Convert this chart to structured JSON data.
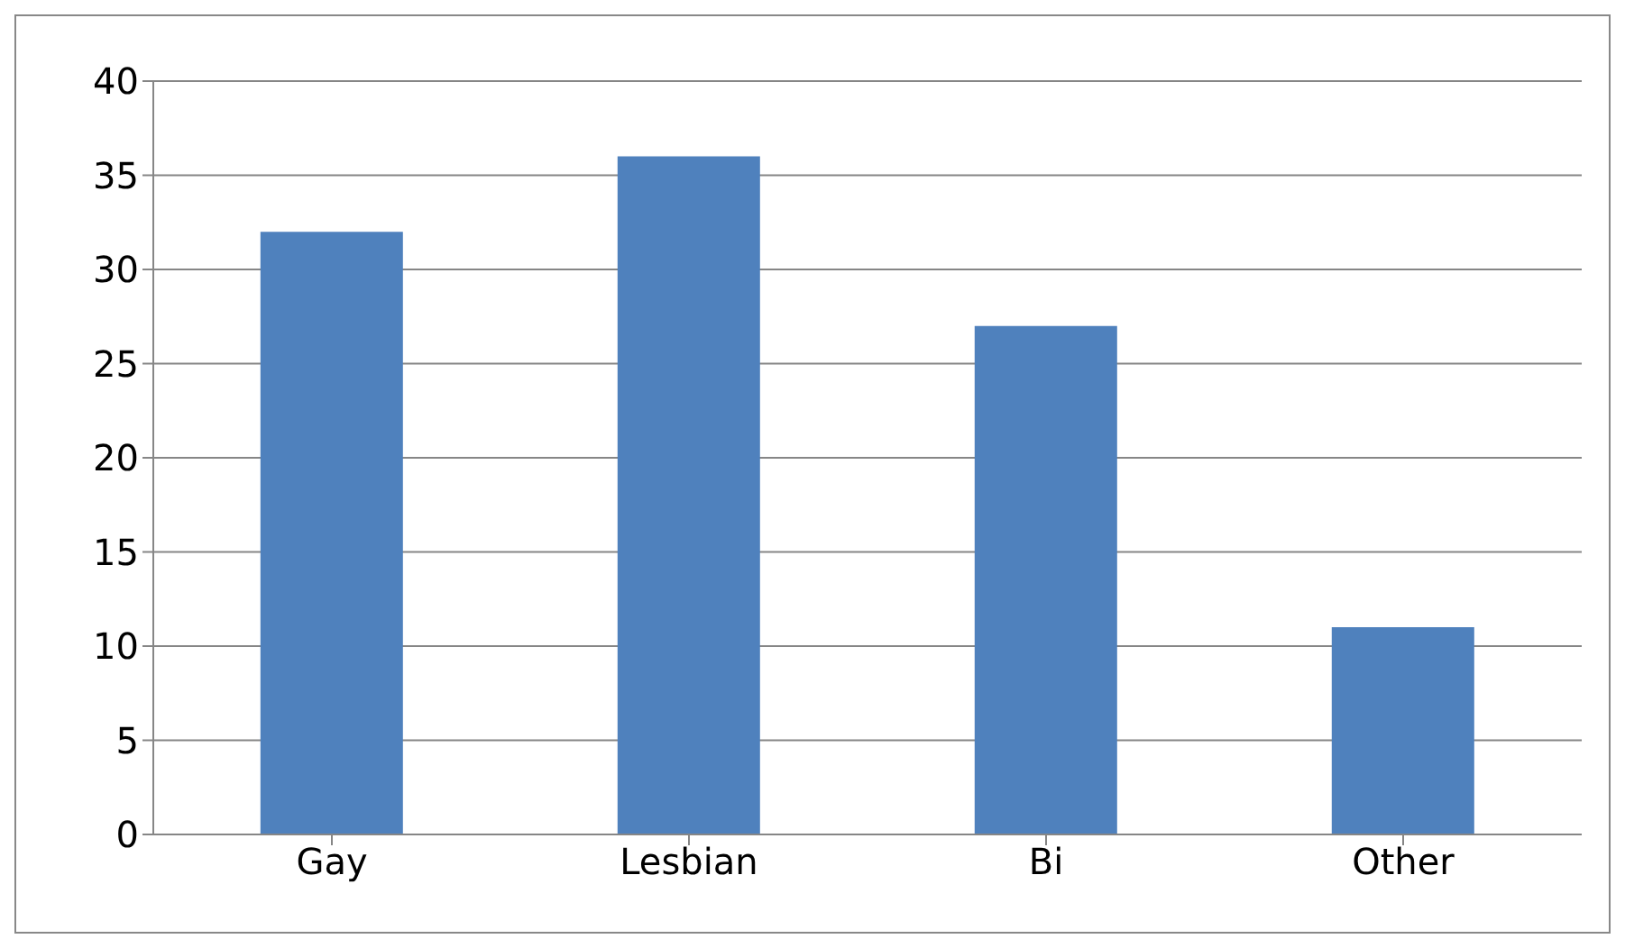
{
  "chart_data": {
    "type": "bar",
    "categories": [
      "Gay",
      "Lesbian",
      "Bi",
      "Other"
    ],
    "values": [
      32,
      36,
      27,
      11
    ],
    "color": "#4f81bd",
    "ylim": [
      0,
      40
    ],
    "yticks": [
      0,
      5,
      10,
      15,
      20,
      25,
      30,
      35,
      40
    ],
    "grid": "y"
  }
}
